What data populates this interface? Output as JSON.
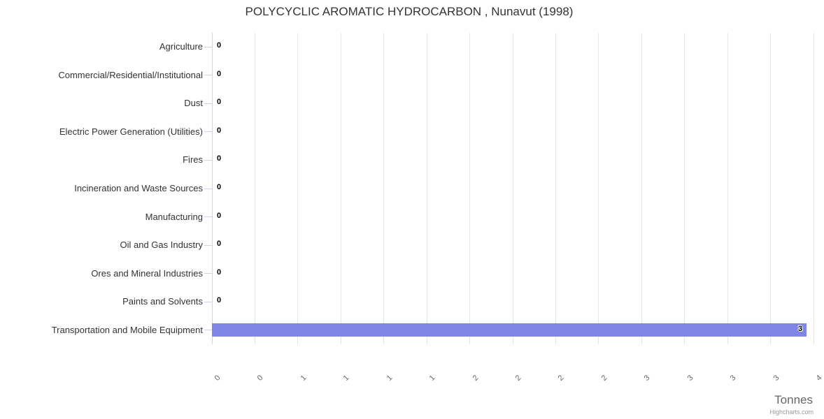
{
  "credits": "Highcharts.com",
  "chart_data": {
    "type": "bar",
    "orientation": "horizontal",
    "title": "POLYCYCLIC AROMATIC HYDROCARBON , Nunavut (1998)",
    "categories": [
      "Agriculture",
      "Commercial/Residential/Institutional",
      "Dust",
      "Electric Power Generation (Utilities)",
      "Fires",
      "Incineration and Waste Sources",
      "Manufacturing",
      "Oil and Gas Industry",
      "Ores and Mineral Industries",
      "Paints and Solvents",
      "Transportation and Mobile Equipment"
    ],
    "values": [
      0,
      0,
      0,
      0,
      0,
      0,
      0,
      0,
      0,
      0,
      3.46
    ],
    "data_labels": [
      "0",
      "0",
      "0",
      "0",
      "0",
      "0",
      "0",
      "0",
      "0",
      "0",
      "3"
    ],
    "xlabel": "Tonnes",
    "xlim": [
      0,
      3.5
    ],
    "xticks": [
      0,
      0.25,
      0.5,
      0.75,
      1,
      1.25,
      1.5,
      1.75,
      2,
      2.25,
      2.5,
      2.75,
      3,
      3.25,
      3.5
    ],
    "xtick_labels": [
      "0",
      "0",
      "1",
      "1",
      "1",
      "1",
      "2",
      "2",
      "2",
      "2",
      "3",
      "3",
      "3",
      "3",
      "4"
    ],
    "grid": true,
    "legend": false,
    "bar_color": "#7f86e5"
  },
  "colors": {
    "bar": "#7f86e5",
    "grid": "#e6e6e6",
    "axis_line": "#ccd6eb",
    "title": "#333333",
    "category_label": "#333333",
    "tick_label": "#666666",
    "axis_title_color": "#666666",
    "credits_color": "#999999",
    "data_label": "#000000"
  }
}
